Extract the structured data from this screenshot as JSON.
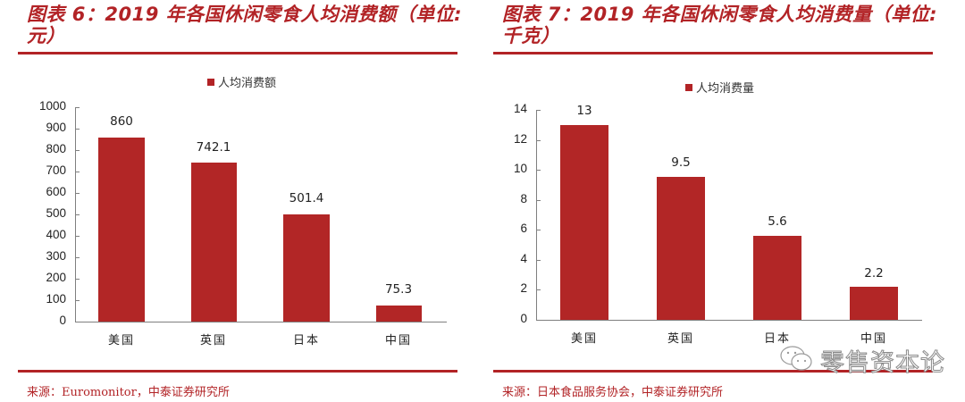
{
  "panels": [
    {
      "title_line1": "图表 6：2019 年各国休闲零食人均消费额（单位:",
      "title_line2": "元）",
      "legend": "人均消费额",
      "source": "来源：Euromonitor，中泰证券研究所",
      "yticks": [
        "0",
        "100",
        "200",
        "300",
        "400",
        "500",
        "600",
        "700",
        "800",
        "900",
        "1000"
      ],
      "categories": [
        "美国",
        "英国",
        "日本",
        "中国"
      ],
      "bar_labels": [
        "860",
        "742.1",
        "501.4",
        "75.3"
      ]
    },
    {
      "title_line1": "图表 7：2019 年各国休闲零食人均消费量（单位:",
      "title_line2": "千克）",
      "legend": "人均消费量",
      "source": "来源：日本食品服务协会，中泰证券研究所",
      "yticks": [
        "0",
        "2",
        "4",
        "6",
        "8",
        "10",
        "12",
        "14"
      ],
      "categories": [
        "美国",
        "英国",
        "日本",
        "中国"
      ],
      "bar_labels": [
        "13",
        "9.5",
        "5.6",
        "2.2"
      ]
    }
  ],
  "watermark": {
    "text": "零售资本论",
    "icon": "wechat-icon"
  },
  "colors": {
    "accent": "#b22326",
    "bar": "#b22626",
    "axis": "#7f7f7f"
  },
  "chart_data": [
    {
      "type": "bar",
      "title": "图表 6：2019 年各国休闲零食人均消费额（单位：元）",
      "categories": [
        "美国",
        "英国",
        "日本",
        "中国"
      ],
      "series": [
        {
          "name": "人均消费额",
          "values": [
            860,
            742.1,
            501.4,
            75.3
          ]
        }
      ],
      "xlabel": "",
      "ylabel": "",
      "ylim": [
        0,
        1000
      ],
      "yticks": [
        0,
        100,
        200,
        300,
        400,
        500,
        600,
        700,
        800,
        900,
        1000
      ],
      "grid": false,
      "legend_position": "top",
      "source": "来源：Euromonitor，中泰证券研究所"
    },
    {
      "type": "bar",
      "title": "图表 7：2019 年各国休闲零食人均消费量（单位：千克）",
      "categories": [
        "美国",
        "英国",
        "日本",
        "中国"
      ],
      "series": [
        {
          "name": "人均消费量",
          "values": [
            13,
            9.5,
            5.6,
            2.2
          ]
        }
      ],
      "xlabel": "",
      "ylabel": "",
      "ylim": [
        0,
        14
      ],
      "yticks": [
        0,
        2,
        4,
        6,
        8,
        10,
        12,
        14
      ],
      "grid": false,
      "legend_position": "top",
      "source": "来源：日本食品服务协会，中泰证券研究所"
    }
  ]
}
